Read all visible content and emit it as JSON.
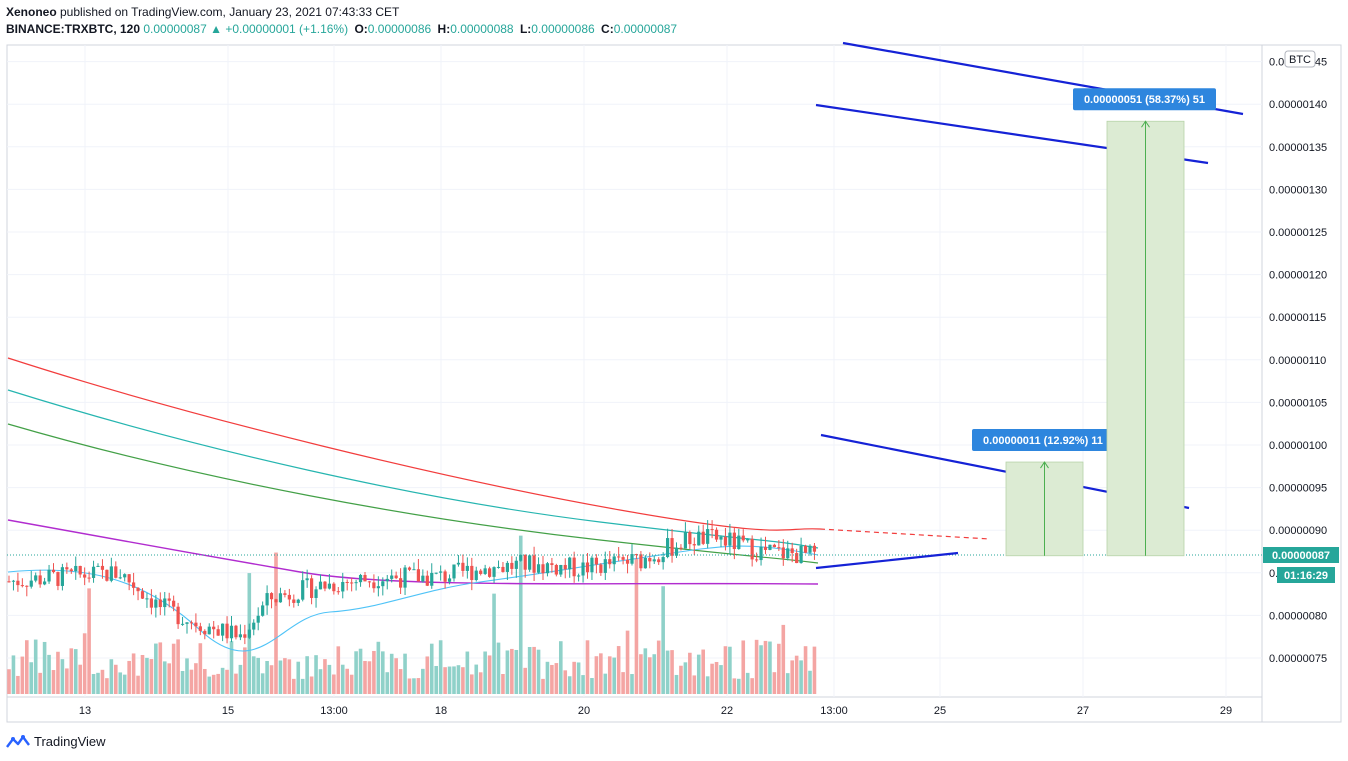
{
  "header": {
    "publisher": "Xenoneo",
    "published_text": " published on TradingView.com, January 23, 2021 07:43:33 CET",
    "symbol": "BINANCE:TRXBTC, 120",
    "last": "0.00000087",
    "change": "▲ +0.00000001 (+1.16%)",
    "open_label": "O:",
    "open": "0.00000086",
    "high_label": "H:",
    "high": "0.00000088",
    "low_label": "L:",
    "low": "0.00000086",
    "close_label": "C:",
    "close": "0.00000087"
  },
  "footer": {
    "brand": "TradingView"
  },
  "price_axis": {
    "currency": "BTC",
    "current_price": "0.00000087",
    "countdown": "01:16:29"
  },
  "colors": {
    "bull": "#26a69a",
    "bear": "#ef5350",
    "ema_red": "#f23d3d",
    "ema_teal": "#26b5b0",
    "ema_green": "#43a047",
    "ema_purple": "#b12ccf",
    "trendline": "#1522d6",
    "measure_fill": "#dcebd3",
    "measure_line": "#4caf50",
    "label_bg": "#2e86de"
  },
  "chart_data": {
    "type": "candlestick",
    "unit": "BTC",
    "yticks": [
      "0.00000075",
      "0.00000080",
      "0.00000085",
      "0.00000090",
      "0.00000095",
      "0.00000100",
      "0.00000105",
      "0.00000110",
      "0.00000115",
      "0.00000120",
      "0.00000125",
      "0.00000130",
      "0.00000135",
      "0.00000140",
      "0.00000145"
    ],
    "ylim": [
      7.1e-07,
      1.46e-06
    ],
    "xticks": [
      "13",
      "15",
      "13:00",
      "18",
      "20",
      "22",
      "13:00",
      "25",
      "27",
      "29"
    ],
    "measurements": [
      {
        "label": "0.00000011 (12.92%) 11",
        "from": 8.7e-07,
        "to": 9.8e-07
      },
      {
        "label": "0.00000051 (58.37%) 51",
        "from": 8.7e-07,
        "to": 1.38e-06
      }
    ],
    "price_series": [
      {
        "name": "candles_approx",
        "start_date": "2021-01-12",
        "bar_hours": 2,
        "closes": [
          8.4e-07,
          8.5e-07,
          8.4e-07,
          8.5e-07,
          8.4e-07,
          8.3e-07,
          8e-07,
          7.9e-07,
          7.8e-07,
          7.7e-07,
          7.8e-07,
          8e-07,
          8.1e-07,
          8.2e-07,
          8.3e-07,
          8.3e-07,
          8.4e-07,
          8.4e-07,
          8.5e-07,
          8.6e-07,
          8.6e-07,
          8.6e-07,
          8.5e-07,
          8.5e-07,
          8.5e-07,
          8.6e-07,
          8.6e-07,
          8.7e-07,
          8.8e-07,
          8.7e-07,
          8.7e-07,
          8.7e-07
        ]
      }
    ]
  }
}
